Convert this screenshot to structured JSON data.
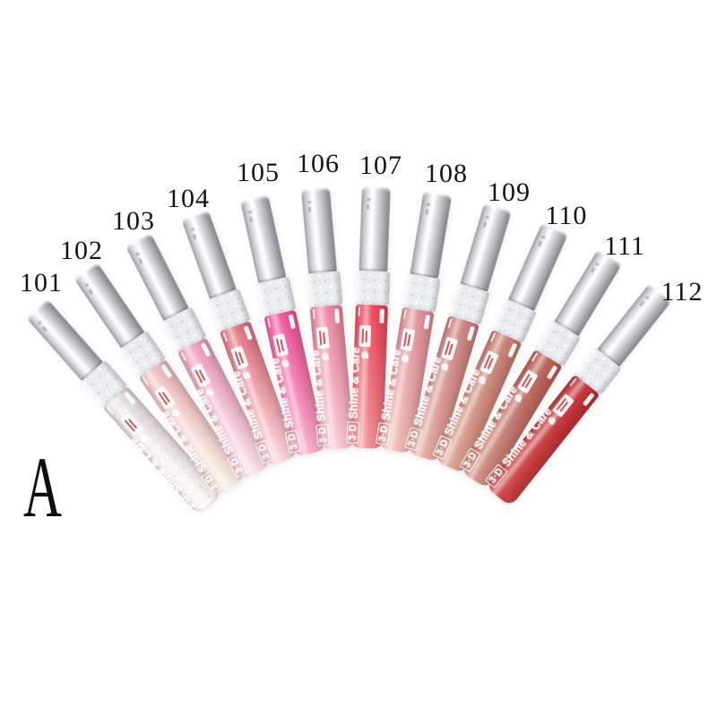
{
  "page": {
    "background_color": "#ffffff",
    "figure_label": "A"
  },
  "product_line": {
    "logo_text": "3·D",
    "name_text": "Shine & Care",
    "cap_color": "#d9dadd",
    "collar_color": "#eaecef",
    "label_text_color": "#ffffff",
    "brand_accent_color": "#c5383d",
    "shades": [
      {
        "code": "101",
        "body_top": "#e9e6e5",
        "body_bottom": "#faf8f6",
        "finish": "clear"
      },
      {
        "code": "102",
        "body_top": "#f3bfc2",
        "body_bottom": "#f8ebdf",
        "finish": "shimmer"
      },
      {
        "code": "103",
        "body_top": "#f0a0c0",
        "body_bottom": "#f8dde8",
        "finish": "shimmer"
      },
      {
        "code": "104",
        "body_top": "#e4707d",
        "body_bottom": "#f7d2d6",
        "finish": "shimmer"
      },
      {
        "code": "105",
        "body_top": "#f2509b",
        "body_bottom": "#f7a9c6",
        "finish": "shimmer"
      },
      {
        "code": "106",
        "body_top": "#ef82a0",
        "body_bottom": "#f6c8d2",
        "finish": "shimmer"
      },
      {
        "code": "107",
        "body_top": "#ee4053",
        "body_bottom": "#f28f96",
        "finish": "shimmer"
      },
      {
        "code": "108",
        "body_top": "#e18e98",
        "body_bottom": "#f0bdb6",
        "finish": "shimmer"
      },
      {
        "code": "109",
        "body_top": "#cb7e7c",
        "body_bottom": "#e3aaa0",
        "finish": "shimmer"
      },
      {
        "code": "110",
        "body_top": "#c57a6c",
        "body_bottom": "#daa18f",
        "finish": "shimmer"
      },
      {
        "code": "111",
        "body_top": "#b75b51",
        "body_bottom": "#cf8d80",
        "finish": "shimmer"
      },
      {
        "code": "112",
        "body_top": "#c02a30",
        "body_bottom": "#cc4241",
        "finish": "cream"
      }
    ]
  }
}
